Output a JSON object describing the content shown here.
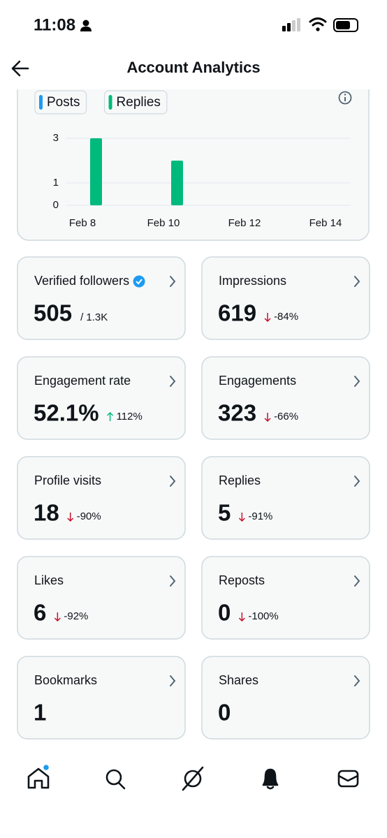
{
  "status_bar": {
    "time": "11:08"
  },
  "header": {
    "title": "Account Analytics"
  },
  "chart_data": {
    "type": "bar",
    "categories": [
      "Feb 8",
      null,
      "Feb 10",
      null,
      "Feb 12",
      null,
      "Feb 14"
    ],
    "series": [
      {
        "name": "Posts",
        "color": "#1d9bf0",
        "values": [
          0,
          0,
          0,
          0,
          0,
          0,
          0
        ]
      },
      {
        "name": "Replies",
        "color": "#00ba7c",
        "values": [
          3,
          0,
          2,
          0,
          0,
          0,
          0
        ]
      }
    ],
    "ylim": [
      0,
      3
    ],
    "yticks": [
      0,
      1,
      3
    ],
    "grid": true,
    "stacked": true
  },
  "cards": [
    {
      "label": "Verified followers",
      "value": "505",
      "extra": "/ 1.3K"
    },
    {
      "label": "Impressions",
      "value": "619",
      "change": "-84%",
      "trend": "down"
    },
    {
      "label": "Engagement rate",
      "value": "52.1%",
      "change": "112%",
      "trend": "up"
    },
    {
      "label": "Engagements",
      "value": "323",
      "change": "-66%",
      "trend": "down"
    },
    {
      "label": "Profile visits",
      "value": "18",
      "change": "-90%",
      "trend": "down"
    },
    {
      "label": "Replies",
      "value": "5",
      "change": "-91%",
      "trend": "down"
    },
    {
      "label": "Likes",
      "value": "6",
      "change": "-92%",
      "trend": "down"
    },
    {
      "label": "Reposts",
      "value": "0",
      "change": "-100%",
      "trend": "down"
    },
    {
      "label": "Bookmarks",
      "value": "1"
    },
    {
      "label": "Shares",
      "value": "0"
    }
  ]
}
